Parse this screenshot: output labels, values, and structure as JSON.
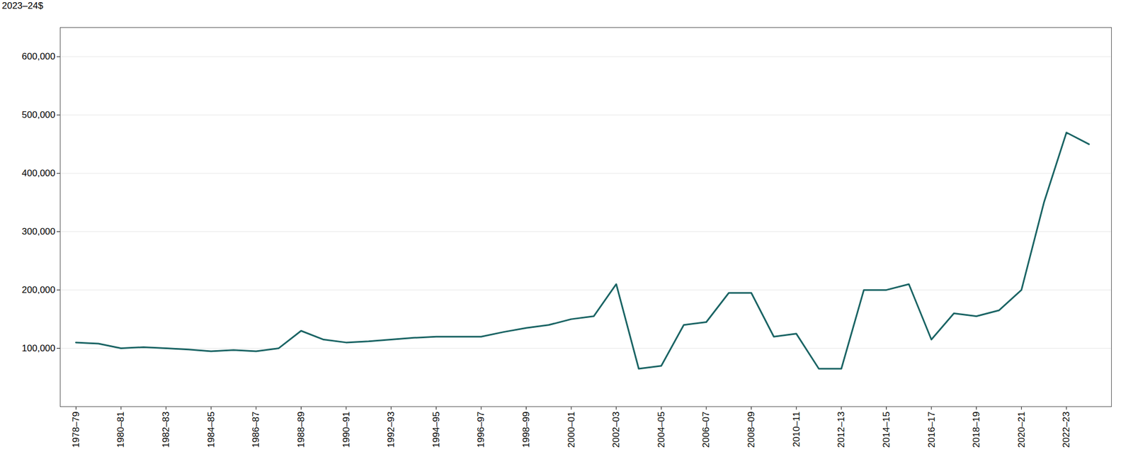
{
  "chart_data": {
    "type": "line",
    "ylabel": "2023–24$",
    "color": "#1a6464",
    "grid": true,
    "x": [
      1978,
      1979,
      1980,
      1981,
      1982,
      1983,
      1984,
      1985,
      1986,
      1987,
      1988,
      1989,
      1990,
      1991,
      1992,
      1993,
      1994,
      1995,
      1996,
      1997,
      1998,
      1999,
      2000,
      2001,
      2002,
      2003,
      2004,
      2005,
      2006,
      2007,
      2008,
      2009,
      2010,
      2011,
      2012,
      2013,
      2014,
      2015,
      2016,
      2017,
      2018,
      2019,
      2020,
      2021,
      2022,
      2023
    ],
    "values": [
      110000,
      108000,
      100000,
      102000,
      100000,
      98000,
      95000,
      97000,
      95000,
      100000,
      130000,
      115000,
      110000,
      112000,
      115000,
      118000,
      120000,
      120000,
      120000,
      128000,
      135000,
      140000,
      150000,
      155000,
      210000,
      65000,
      70000,
      140000,
      145000,
      195000,
      195000,
      120000,
      125000,
      65000,
      65000,
      200000,
      200000,
      210000,
      115000,
      160000,
      155000,
      165000,
      200000,
      350000,
      470000,
      450000
    ],
    "xlim": [
      1977.3,
      2024.0
    ],
    "xticks": [
      {
        "value": 1978,
        "label": "1978–79"
      },
      {
        "value": 1980,
        "label": "1980–81"
      },
      {
        "value": 1982,
        "label": "1982–83"
      },
      {
        "value": 1984,
        "label": "1984–85"
      },
      {
        "value": 1986,
        "label": "1986–87"
      },
      {
        "value": 1988,
        "label": "1988–89"
      },
      {
        "value": 1990,
        "label": "1990–91"
      },
      {
        "value": 1992,
        "label": "1992–93"
      },
      {
        "value": 1994,
        "label": "1994–95"
      },
      {
        "value": 1996,
        "label": "1996–97"
      },
      {
        "value": 1998,
        "label": "1998–99"
      },
      {
        "value": 2000,
        "label": "2000–01"
      },
      {
        "value": 2002,
        "label": "2002–03"
      },
      {
        "value": 2004,
        "label": "2004–05"
      },
      {
        "value": 2006,
        "label": "2006–07"
      },
      {
        "value": 2008,
        "label": "2008–09"
      },
      {
        "value": 2010,
        "label": "2010–11"
      },
      {
        "value": 2012,
        "label": "2012–13"
      },
      {
        "value": 2014,
        "label": "2014–15"
      },
      {
        "value": 2016,
        "label": "2016–17"
      },
      {
        "value": 2018,
        "label": "2018–19"
      },
      {
        "value": 2020,
        "label": "2020–21"
      },
      {
        "value": 2022,
        "label": "2022–23"
      }
    ],
    "ylim": [
      0,
      650000
    ],
    "yticks": [
      {
        "value": 100000,
        "label": "100,000"
      },
      {
        "value": 200000,
        "label": "200,000"
      },
      {
        "value": 300000,
        "label": "300,000"
      },
      {
        "value": 400000,
        "label": "400,000"
      },
      {
        "value": 500000,
        "label": "500,000"
      },
      {
        "value": 600000,
        "label": "600,000"
      }
    ]
  }
}
